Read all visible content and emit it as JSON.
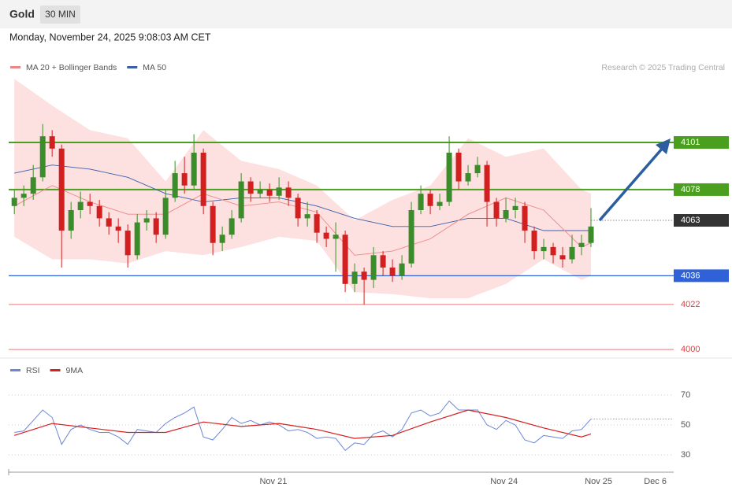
{
  "header": {
    "symbol": "Gold",
    "interval": "30 MIN"
  },
  "timestamp": "Monday, November 24, 2025 9:08:03 AM CET",
  "credit": "Research © 2025 Trading Central",
  "chart_data": [
    {
      "type": "candlestick",
      "xlim": [
        -0.6,
        69.75
      ],
      "ylim": [
        3997,
        4134
      ],
      "up_color": "#3b8c2a",
      "down_color": "#d21f1f",
      "open": [
        4070,
        4074,
        4076,
        4084,
        4104,
        4098,
        4058,
        4068,
        4072,
        4070,
        4064,
        4060,
        4058,
        4046,
        4062,
        4064,
        4056,
        4074,
        4086,
        4080,
        4096,
        4070,
        4052,
        4056,
        4064,
        4082,
        4076,
        4078,
        4075,
        4079,
        4074,
        4064,
        4066,
        4057,
        4054,
        4056,
        4032,
        4038,
        4034,
        4046,
        4040,
        4036,
        4042,
        4068,
        4076,
        4070,
        4072,
        4096,
        4082,
        4086,
        4090,
        4072,
        4064,
        4068,
        4070,
        4058,
        4048,
        4050,
        4046,
        4044,
        4050,
        4052
      ],
      "high": [
        4078,
        4080,
        4090,
        4110,
        4107,
        4100,
        4072,
        4077,
        4076,
        4073,
        4067,
        4064,
        4061,
        4066,
        4068,
        4067,
        4078,
        4092,
        4094,
        4105,
        4098,
        4072,
        4060,
        4068,
        4086,
        4084,
        4082,
        4081,
        4084,
        4082,
        4076,
        4072,
        4068,
        4060,
        4062,
        4058,
        4042,
        4040,
        4050,
        4048,
        4044,
        4046,
        4072,
        4080,
        4078,
        4076,
        4104,
        4098,
        4090,
        4094,
        4092,
        4074,
        4074,
        4074,
        4072,
        4060,
        4054,
        4052,
        4050,
        4056,
        4056,
        4069
      ],
      "low": [
        4066,
        4070,
        4073,
        4082,
        4094,
        4040,
        4054,
        4064,
        4066,
        4060,
        4056,
        4052,
        4040,
        4044,
        4058,
        4052,
        4054,
        4072,
        4076,
        4078,
        4066,
        4046,
        4048,
        4054,
        4062,
        4072,
        4074,
        4072,
        4073,
        4070,
        4060,
        4060,
        4052,
        4050,
        4038,
        4028,
        4028,
        4022,
        4030,
        4036,
        4033,
        4034,
        4040,
        4066,
        4066,
        4068,
        4070,
        4078,
        4080,
        4084,
        4060,
        4060,
        4062,
        4064,
        4052,
        4044,
        4044,
        4042,
        4040,
        4042,
        4046,
        4050
      ],
      "close": [
        4074,
        4076,
        4084,
        4104,
        4098,
        4058,
        4068,
        4072,
        4070,
        4064,
        4060,
        4058,
        4046,
        4062,
        4064,
        4056,
        4074,
        4086,
        4080,
        4096,
        4070,
        4052,
        4056,
        4064,
        4082,
        4076,
        4078,
        4075,
        4079,
        4074,
        4064,
        4066,
        4057,
        4054,
        4056,
        4032,
        4038,
        4034,
        4046,
        4040,
        4036,
        4042,
        4068,
        4076,
        4070,
        4072,
        4096,
        4082,
        4086,
        4090,
        4072,
        4064,
        4068,
        4070,
        4058,
        4048,
        4050,
        4046,
        4044,
        4050,
        4052,
        4060
      ],
      "legend": [
        {
          "name": "MA 20 + Bollinger Bands",
          "color": "#f08585"
        },
        {
          "name": "MA 50",
          "color": "#3a5fa8"
        }
      ],
      "overlays": {
        "x": [
          0,
          4,
          8,
          12,
          16,
          20,
          24,
          28,
          32,
          36,
          40,
          44,
          48,
          52,
          56,
          60,
          61
        ],
        "bb_upper": [
          4132,
          4119,
          4107,
          4103,
          4082,
          4107,
          4092,
          4088,
          4080,
          4063,
          4073,
          4080,
          4103,
          4094,
          4098,
          4078,
          4076
        ],
        "bb_lower": [
          4055,
          4044,
          4044,
          4042,
          4048,
          4046,
          4050,
          4055,
          4053,
          4028,
          4027,
          4025,
          4025,
          4032,
          4044,
          4034,
          4036
        ],
        "ma20": [
          4070,
          4080,
          4072,
          4066,
          4066,
          4076,
          4070,
          4072,
          4067,
          4046,
          4048,
          4054,
          4066,
          4074,
          4068,
          4050,
          4052
        ],
        "ma50": [
          4086,
          4090,
          4088,
          4084,
          4076,
          4072,
          4074,
          4074,
          4070,
          4064,
          4060,
          4060,
          4064,
          4064,
          4058,
          4058,
          4058
        ],
        "band_color": "#fde0e0",
        "ma20_color": "#f08585",
        "ma50_color": "#3a5fa8"
      },
      "levels": [
        {
          "value": 4101,
          "color": "#4aa01e",
          "style": "tag"
        },
        {
          "value": 4078,
          "color": "#4aa01e",
          "style": "tag"
        },
        {
          "value": 4063,
          "color": "#333333",
          "style": "dotted"
        },
        {
          "value": 4036,
          "color": "#2f62d8",
          "style": "tag"
        },
        {
          "value": 4022,
          "color": "#e04040",
          "style": "text"
        },
        {
          "value": 4000,
          "color": "#e04040",
          "style": "text"
        }
      ]
    },
    {
      "type": "line",
      "xlim": [
        -0.6,
        69.75
      ],
      "ylim": [
        20,
        80
      ],
      "yticks": [
        70,
        50,
        30
      ],
      "xticks": [
        {
          "value": 27.4,
          "label": "Nov 21"
        },
        {
          "value": 51.8,
          "label": "Nov 24"
        },
        {
          "value": 61.8,
          "label": "Nov 25"
        },
        {
          "value": 67.8,
          "label": "Dec 6"
        }
      ],
      "series": [
        {
          "name": "RSI",
          "color": "#6b86d6",
          "x": [
            0,
            1,
            2,
            3,
            4,
            5,
            6,
            7,
            8,
            9,
            10,
            11,
            12,
            13,
            14,
            15,
            16,
            17,
            18,
            19,
            20,
            21,
            22,
            23,
            24,
            25,
            26,
            27,
            28,
            29,
            30,
            31,
            32,
            33,
            34,
            35,
            36,
            37,
            38,
            39,
            40,
            41,
            42,
            43,
            44,
            45,
            46,
            47,
            48,
            49,
            50,
            51,
            52,
            53,
            54,
            55,
            56,
            57,
            58,
            59,
            60,
            61
          ],
          "values": [
            45,
            46,
            53,
            60,
            55,
            37,
            47,
            50,
            47,
            45,
            45,
            42,
            37,
            47,
            46,
            45,
            51,
            55,
            58,
            62,
            42,
            40,
            47,
            55,
            51,
            53,
            50,
            52,
            50,
            46,
            47,
            45,
            41,
            42,
            41,
            33,
            38,
            37,
            44,
            46,
            42,
            47,
            58,
            60,
            56,
            58,
            66,
            60,
            60,
            60,
            50,
            47,
            53,
            50,
            40,
            38,
            43,
            42,
            41,
            46,
            47,
            54
          ]
        },
        {
          "name": "9MA",
          "color": "#d42020",
          "x": [
            0,
            4,
            8,
            12,
            16,
            20,
            24,
            28,
            32,
            36,
            40,
            44,
            48,
            52,
            56,
            60,
            61
          ],
          "values": [
            43,
            51,
            48,
            45,
            45,
            52,
            49,
            51,
            47,
            41,
            43,
            52,
            60,
            55,
            48,
            42,
            44
          ]
        }
      ]
    }
  ]
}
